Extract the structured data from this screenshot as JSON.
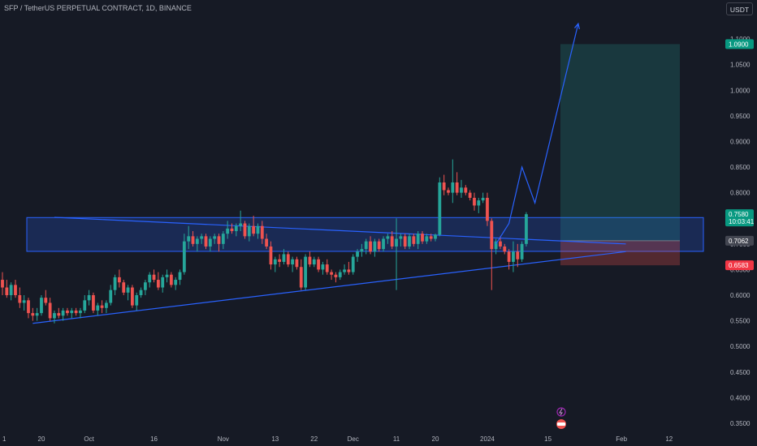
{
  "header": {
    "title": "SFP / TetherUS PERPETUAL CONTRACT, 1D, BINANCE",
    "currency_button": "USDT"
  },
  "colors": {
    "background": "#161a25",
    "up": "#26a69a",
    "down": "#ef5350",
    "zone": "#2962ff",
    "target_zone": "#26a69a",
    "stop_zone": "#ef5350",
    "axis_text": "#b2b5be"
  },
  "price_labels": {
    "target": "1.0900",
    "current": "0.7580",
    "countdown": "10:03:41",
    "entry": "0.7062",
    "stop": "0.6583"
  },
  "chart_data": {
    "type": "candlestick",
    "symbol": "SFP / TetherUS PERPETUAL CONTRACT",
    "timeframe": "1D",
    "exchange": "BINANCE",
    "y_axis_ticks": [
      "1.1000",
      "1.0500",
      "1.0000",
      "0.9500",
      "0.9000",
      "0.8500",
      "0.8000",
      "0.7500",
      "0.7000",
      "0.6500",
      "0.6000",
      "0.5500",
      "0.5000",
      "0.4500",
      "0.4000",
      "0.3500"
    ],
    "ylim": [
      0.345,
      1.14
    ],
    "x_axis_ticks": [
      {
        "label": "1",
        "i": 0
      },
      {
        "label": "20",
        "i": 9
      },
      {
        "label": "Oct",
        "i": 20
      },
      {
        "label": "16",
        "i": 35
      },
      {
        "label": "Nov",
        "i": 51
      },
      {
        "label": "13",
        "i": 63
      },
      {
        "label": "22",
        "i": 72
      },
      {
        "label": "Dec",
        "i": 81
      },
      {
        "label": "11",
        "i": 91
      },
      {
        "label": "20",
        "i": 100
      },
      {
        "label": "2024",
        "i": 112
      },
      {
        "label": "15",
        "i": 126
      },
      {
        "label": "Feb",
        "i": 143
      },
      {
        "label": "12",
        "i": 154
      }
    ],
    "candles": [
      [
        0.63,
        0.645,
        0.6,
        0.615
      ],
      [
        0.615,
        0.63,
        0.595,
        0.6
      ],
      [
        0.6,
        0.625,
        0.59,
        0.62
      ],
      [
        0.62,
        0.63,
        0.595,
        0.6
      ],
      [
        0.6,
        0.615,
        0.575,
        0.585
      ],
      [
        0.585,
        0.6,
        0.57,
        0.59
      ],
      [
        0.59,
        0.595,
        0.555,
        0.565
      ],
      [
        0.565,
        0.575,
        0.55,
        0.56
      ],
      [
        0.56,
        0.575,
        0.55,
        0.565
      ],
      [
        0.565,
        0.6,
        0.56,
        0.595
      ],
      [
        0.595,
        0.61,
        0.58,
        0.585
      ],
      [
        0.585,
        0.595,
        0.55,
        0.555
      ],
      [
        0.555,
        0.57,
        0.545,
        0.565
      ],
      [
        0.565,
        0.575,
        0.555,
        0.56
      ],
      [
        0.56,
        0.575,
        0.55,
        0.57
      ],
      [
        0.57,
        0.575,
        0.56,
        0.565
      ],
      [
        0.565,
        0.575,
        0.555,
        0.57
      ],
      [
        0.57,
        0.575,
        0.56,
        0.565
      ],
      [
        0.565,
        0.575,
        0.555,
        0.57
      ],
      [
        0.57,
        0.6,
        0.565,
        0.59
      ],
      [
        0.59,
        0.61,
        0.58,
        0.6
      ],
      [
        0.6,
        0.605,
        0.565,
        0.57
      ],
      [
        0.57,
        0.585,
        0.56,
        0.58
      ],
      [
        0.58,
        0.59,
        0.565,
        0.575
      ],
      [
        0.575,
        0.59,
        0.565,
        0.585
      ],
      [
        0.585,
        0.62,
        0.58,
        0.61
      ],
      [
        0.61,
        0.64,
        0.6,
        0.635
      ],
      [
        0.635,
        0.65,
        0.615,
        0.625
      ],
      [
        0.625,
        0.63,
        0.6,
        0.605
      ],
      [
        0.605,
        0.62,
        0.59,
        0.615
      ],
      [
        0.615,
        0.62,
        0.575,
        0.58
      ],
      [
        0.58,
        0.605,
        0.57,
        0.6
      ],
      [
        0.6,
        0.615,
        0.595,
        0.61
      ],
      [
        0.61,
        0.63,
        0.6,
        0.625
      ],
      [
        0.625,
        0.645,
        0.615,
        0.64
      ],
      [
        0.64,
        0.65,
        0.625,
        0.63
      ],
      [
        0.63,
        0.645,
        0.61,
        0.615
      ],
      [
        0.615,
        0.64,
        0.605,
        0.635
      ],
      [
        0.635,
        0.65,
        0.625,
        0.64
      ],
      [
        0.64,
        0.645,
        0.615,
        0.62
      ],
      [
        0.62,
        0.635,
        0.61,
        0.63
      ],
      [
        0.63,
        0.65,
        0.62,
        0.645
      ],
      [
        0.645,
        0.72,
        0.64,
        0.705
      ],
      [
        0.705,
        0.735,
        0.69,
        0.715
      ],
      [
        0.715,
        0.725,
        0.695,
        0.7
      ],
      [
        0.7,
        0.715,
        0.685,
        0.71
      ],
      [
        0.71,
        0.72,
        0.7,
        0.715
      ],
      [
        0.715,
        0.72,
        0.69,
        0.695
      ],
      [
        0.695,
        0.715,
        0.685,
        0.71
      ],
      [
        0.71,
        0.72,
        0.7,
        0.715
      ],
      [
        0.715,
        0.72,
        0.685,
        0.7
      ],
      [
        0.7,
        0.725,
        0.69,
        0.72
      ],
      [
        0.72,
        0.745,
        0.71,
        0.73
      ],
      [
        0.73,
        0.74,
        0.72,
        0.725
      ],
      [
        0.725,
        0.74,
        0.715,
        0.735
      ],
      [
        0.735,
        0.765,
        0.725,
        0.74
      ],
      [
        0.74,
        0.745,
        0.71,
        0.715
      ],
      [
        0.715,
        0.74,
        0.705,
        0.735
      ],
      [
        0.735,
        0.755,
        0.715,
        0.72
      ],
      [
        0.72,
        0.74,
        0.71,
        0.735
      ],
      [
        0.735,
        0.745,
        0.7,
        0.71
      ],
      [
        0.71,
        0.72,
        0.69,
        0.695
      ],
      [
        0.695,
        0.705,
        0.65,
        0.66
      ],
      [
        0.66,
        0.675,
        0.645,
        0.67
      ],
      [
        0.67,
        0.68,
        0.655,
        0.665
      ],
      [
        0.665,
        0.69,
        0.66,
        0.68
      ],
      [
        0.68,
        0.685,
        0.655,
        0.66
      ],
      [
        0.66,
        0.675,
        0.645,
        0.67
      ],
      [
        0.67,
        0.675,
        0.65,
        0.655
      ],
      [
        0.655,
        0.67,
        0.61,
        0.615
      ],
      [
        0.615,
        0.68,
        0.61,
        0.675
      ],
      [
        0.675,
        0.685,
        0.655,
        0.66
      ],
      [
        0.66,
        0.675,
        0.655,
        0.67
      ],
      [
        0.67,
        0.675,
        0.645,
        0.65
      ],
      [
        0.65,
        0.665,
        0.64,
        0.66
      ],
      [
        0.66,
        0.67,
        0.64,
        0.645
      ],
      [
        0.645,
        0.65,
        0.63,
        0.64
      ],
      [
        0.64,
        0.645,
        0.625,
        0.635
      ],
      [
        0.635,
        0.65,
        0.63,
        0.645
      ],
      [
        0.645,
        0.66,
        0.64,
        0.65
      ],
      [
        0.65,
        0.665,
        0.64,
        0.645
      ],
      [
        0.645,
        0.68,
        0.64,
        0.675
      ],
      [
        0.675,
        0.69,
        0.665,
        0.685
      ],
      [
        0.685,
        0.7,
        0.675,
        0.69
      ],
      [
        0.69,
        0.71,
        0.68,
        0.705
      ],
      [
        0.705,
        0.715,
        0.68,
        0.685
      ],
      [
        0.685,
        0.71,
        0.675,
        0.705
      ],
      [
        0.705,
        0.71,
        0.685,
        0.69
      ],
      [
        0.69,
        0.715,
        0.685,
        0.71
      ],
      [
        0.71,
        0.72,
        0.7,
        0.715
      ],
      [
        0.715,
        0.725,
        0.69,
        0.695
      ],
      [
        0.695,
        0.75,
        0.61,
        0.71
      ],
      [
        0.71,
        0.72,
        0.695,
        0.715
      ],
      [
        0.715,
        0.72,
        0.69,
        0.695
      ],
      [
        0.695,
        0.72,
        0.69,
        0.715
      ],
      [
        0.715,
        0.72,
        0.695,
        0.7
      ],
      [
        0.7,
        0.725,
        0.69,
        0.72
      ],
      [
        0.72,
        0.725,
        0.7,
        0.705
      ],
      [
        0.705,
        0.72,
        0.7,
        0.715
      ],
      [
        0.715,
        0.72,
        0.705,
        0.71
      ],
      [
        0.71,
        0.72,
        0.705,
        0.718
      ],
      [
        0.718,
        0.83,
        0.715,
        0.82
      ],
      [
        0.82,
        0.835,
        0.795,
        0.805
      ],
      [
        0.805,
        0.81,
        0.795,
        0.8
      ],
      [
        0.8,
        0.865,
        0.78,
        0.82
      ],
      [
        0.82,
        0.84,
        0.795,
        0.8
      ],
      [
        0.8,
        0.825,
        0.79,
        0.81
      ],
      [
        0.81,
        0.815,
        0.795,
        0.8
      ],
      [
        0.8,
        0.805,
        0.785,
        0.79
      ],
      [
        0.79,
        0.8,
        0.765,
        0.775
      ],
      [
        0.775,
        0.79,
        0.76,
        0.785
      ],
      [
        0.785,
        0.8,
        0.78,
        0.79
      ],
      [
        0.79,
        0.8,
        0.735,
        0.745
      ],
      [
        0.745,
        0.75,
        0.61,
        0.69
      ],
      [
        0.69,
        0.71,
        0.68,
        0.705
      ],
      [
        0.705,
        0.715,
        0.69,
        0.695
      ],
      [
        0.695,
        0.7,
        0.68,
        0.685
      ],
      [
        0.685,
        0.69,
        0.65,
        0.665
      ],
      [
        0.665,
        0.705,
        0.645,
        0.685
      ],
      [
        0.685,
        0.7,
        0.655,
        0.67
      ],
      [
        0.67,
        0.705,
        0.665,
        0.7
      ],
      [
        0.7,
        0.762,
        0.695,
        0.758
      ]
    ],
    "zones": [
      {
        "type": "rectangle",
        "color": "#2962ff",
        "y1": 0.6855,
        "y2": 0.7515
      },
      {
        "type": "long_position",
        "target": 1.09,
        "entry": 0.7062,
        "stop": 0.6583
      }
    ],
    "trendlines": [
      {
        "from": [
          7,
          0.545
        ],
        "to": [
          144,
          0.685
        ]
      },
      {
        "from": [
          12,
          0.752
        ],
        "to": [
          144,
          0.7
        ]
      }
    ],
    "projection_path": [
      [
        114,
        0.7
      ],
      [
        117,
        0.74
      ],
      [
        120,
        0.85
      ],
      [
        123,
        0.78
      ],
      [
        133,
        1.13
      ]
    ]
  }
}
